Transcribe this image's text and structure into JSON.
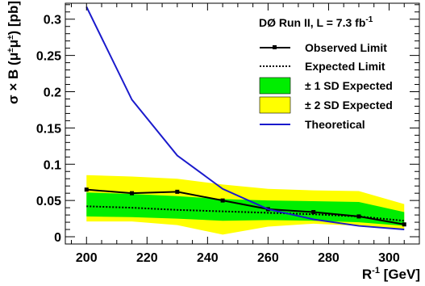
{
  "chart_data": {
    "type": "line",
    "experiment_label": "DØ Run II, L = 7.3 fb",
    "experiment_label_sup": "-1",
    "xlabel": {
      "prefix": "R",
      "sup": "-1",
      "suffix": " [GeV]"
    },
    "ylabel": {
      "pre": "σ × B (μ",
      "sup1": "±",
      "mid": "μ",
      "sup2": "±",
      "post": ") [pb]"
    },
    "xlim": [
      193,
      310
    ],
    "ylim": [
      -0.01,
      0.322
    ],
    "x_ticks": [
      200,
      220,
      240,
      260,
      280,
      300
    ],
    "x_tick_labels": [
      "200",
      "220",
      "240",
      "260",
      "280",
      "300"
    ],
    "y_ticks": [
      0,
      0.05,
      0.1,
      0.15,
      0.2,
      0.25,
      0.3
    ],
    "y_tick_labels": [
      "0",
      "0.05",
      "0.1",
      "0.15",
      "0.2",
      "0.25",
      "0.3"
    ],
    "x": [
      200,
      215,
      230,
      245,
      260,
      275,
      290,
      305
    ],
    "series": [
      {
        "name": "Observed Limit",
        "values": [
          0.065,
          0.06,
          0.062,
          0.05,
          0.038,
          0.034,
          0.028,
          0.017
        ],
        "color": "#000000",
        "style": "solid-markers"
      },
      {
        "name": "Expected Limit",
        "values": [
          0.042,
          0.04,
          0.037,
          0.035,
          0.033,
          0.031,
          0.028,
          0.022
        ],
        "color": "#000000",
        "style": "dotted"
      },
      {
        "name": "Theoretical",
        "values": [
          0.317,
          0.189,
          0.112,
          0.066,
          0.038,
          0.024,
          0.015,
          0.01
        ],
        "color": "#1a1acc",
        "style": "solid"
      }
    ],
    "bands": [
      {
        "name": "± 2 SD Expected",
        "color": "#ffff00",
        "upper": [
          0.085,
          0.083,
          0.08,
          0.072,
          0.066,
          0.064,
          0.063,
          0.045
        ],
        "lower": [
          0.021,
          0.021,
          0.016,
          0.003,
          0.014,
          0.018,
          0.015,
          0.011
        ]
      },
      {
        "name": "± 1 SD Expected",
        "color": "#00ee00",
        "upper": [
          0.061,
          0.059,
          0.056,
          0.052,
          0.05,
          0.049,
          0.048,
          0.034
        ],
        "lower": [
          0.028,
          0.027,
          0.025,
          0.022,
          0.023,
          0.022,
          0.02,
          0.015
        ]
      }
    ],
    "legend_position": "top-right",
    "grid": false
  }
}
